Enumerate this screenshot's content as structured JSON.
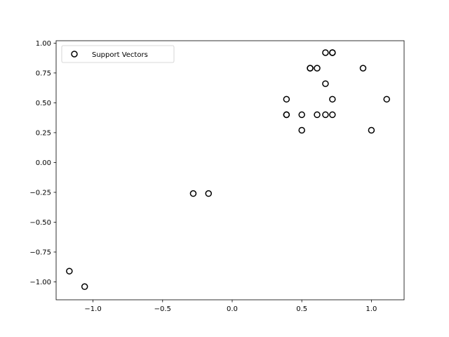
{
  "chart_data": {
    "type": "scatter",
    "series": [
      {
        "name": "Support Vectors",
        "marker": "open-circle",
        "color": "#000000",
        "points": [
          {
            "x": -1.17,
            "y": -0.91
          },
          {
            "x": -1.06,
            "y": -1.04
          },
          {
            "x": -0.28,
            "y": -0.26
          },
          {
            "x": -0.17,
            "y": -0.26
          },
          {
            "x": 0.39,
            "y": 0.53
          },
          {
            "x": 0.39,
            "y": 0.4
          },
          {
            "x": 0.39,
            "y": 0.4
          },
          {
            "x": 0.5,
            "y": 0.4
          },
          {
            "x": 0.5,
            "y": 0.27
          },
          {
            "x": 0.56,
            "y": 0.79
          },
          {
            "x": 0.56,
            "y": 0.79
          },
          {
            "x": 0.61,
            "y": 0.79
          },
          {
            "x": 0.61,
            "y": 0.4
          },
          {
            "x": 0.67,
            "y": 0.92
          },
          {
            "x": 0.67,
            "y": 0.66
          },
          {
            "x": 0.67,
            "y": 0.4
          },
          {
            "x": 0.72,
            "y": 0.92
          },
          {
            "x": 0.72,
            "y": 0.92
          },
          {
            "x": 0.72,
            "y": 0.53
          },
          {
            "x": 0.72,
            "y": 0.4
          },
          {
            "x": 0.94,
            "y": 0.79
          },
          {
            "x": 1.0,
            "y": 0.27
          },
          {
            "x": 1.11,
            "y": 0.53
          }
        ]
      }
    ],
    "xlim": [
      -1.265,
      1.235
    ],
    "ylim": [
      -1.15,
      1.02
    ],
    "x_ticks": [
      -1.0,
      -0.5,
      0.0,
      0.5,
      1.0
    ],
    "x_tick_labels": [
      "−1.0",
      "−0.5",
      "0.0",
      "0.5",
      "1.0"
    ],
    "y_ticks": [
      -1.0,
      -0.75,
      -0.5,
      -0.25,
      0.0,
      0.25,
      0.5,
      0.75,
      1.0
    ],
    "y_tick_labels": [
      "−1.00",
      "−0.75",
      "−0.50",
      "−0.25",
      "0.00",
      "0.25",
      "0.50",
      "0.75",
      "1.00"
    ],
    "grid": false,
    "legend": {
      "position": "top-left",
      "entries": [
        "Support Vectors"
      ]
    }
  }
}
